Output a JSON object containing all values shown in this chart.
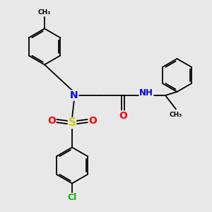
{
  "background_color": "#e8e8e8",
  "bond_color": "#000000",
  "bond_width": 1.3,
  "atom_colors": {
    "N": "#0000ff",
    "O": "#ff0000",
    "S": "#cccc00",
    "Cl": "#00bb00",
    "NH": "#0000cc",
    "C": "#000000"
  },
  "font_size_atom": 8.5,
  "font_size_small": 7.0
}
